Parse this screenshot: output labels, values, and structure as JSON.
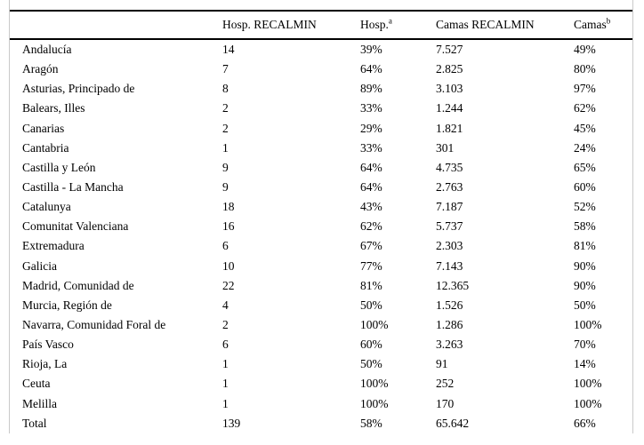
{
  "table": {
    "columns": [
      {
        "label": "",
        "sup": ""
      },
      {
        "label": "Hosp. RECALMIN",
        "sup": ""
      },
      {
        "label": "Hosp.",
        "sup": "a"
      },
      {
        "label": "Camas RECALMIN",
        "sup": ""
      },
      {
        "label": "Camas",
        "sup": "b"
      }
    ],
    "rows": [
      {
        "region": "Andalucía",
        "hosp_recalmin": "14",
        "hosp_pct": "39%",
        "camas_recalmin": "7.527",
        "camas_pct": "49%"
      },
      {
        "region": "Aragón",
        "hosp_recalmin": "7",
        "hosp_pct": "64%",
        "camas_recalmin": "2.825",
        "camas_pct": "80%"
      },
      {
        "region": "Asturias, Principado de",
        "hosp_recalmin": "8",
        "hosp_pct": "89%",
        "camas_recalmin": "3.103",
        "camas_pct": "97%"
      },
      {
        "region": "Balears, Illes",
        "hosp_recalmin": "2",
        "hosp_pct": "33%",
        "camas_recalmin": "1.244",
        "camas_pct": "62%"
      },
      {
        "region": "Canarias",
        "hosp_recalmin": "2",
        "hosp_pct": "29%",
        "camas_recalmin": "1.821",
        "camas_pct": "45%"
      },
      {
        "region": "Cantabria",
        "hosp_recalmin": "1",
        "hosp_pct": "33%",
        "camas_recalmin": "301",
        "camas_pct": "24%"
      },
      {
        "region": "Castilla y León",
        "hosp_recalmin": "9",
        "hosp_pct": "64%",
        "camas_recalmin": "4.735",
        "camas_pct": "65%"
      },
      {
        "region": "Castilla - La Mancha",
        "hosp_recalmin": "9",
        "hosp_pct": "64%",
        "camas_recalmin": "2.763",
        "camas_pct": "60%"
      },
      {
        "region": "Catalunya",
        "hosp_recalmin": "18",
        "hosp_pct": "43%",
        "camas_recalmin": "7.187",
        "camas_pct": "52%"
      },
      {
        "region": "Comunitat Valenciana",
        "hosp_recalmin": "16",
        "hosp_pct": "62%",
        "camas_recalmin": "5.737",
        "camas_pct": "58%"
      },
      {
        "region": "Extremadura",
        "hosp_recalmin": "6",
        "hosp_pct": "67%",
        "camas_recalmin": "2.303",
        "camas_pct": "81%"
      },
      {
        "region": "Galicia",
        "hosp_recalmin": "10",
        "hosp_pct": "77%",
        "camas_recalmin": "7.143",
        "camas_pct": "90%"
      },
      {
        "region": "Madrid, Comunidad de",
        "hosp_recalmin": "22",
        "hosp_pct": "81%",
        "camas_recalmin": "12.365",
        "camas_pct": "90%"
      },
      {
        "region": "Murcia, Región de",
        "hosp_recalmin": "4",
        "hosp_pct": "50%",
        "camas_recalmin": "1.526",
        "camas_pct": "50%"
      },
      {
        "region": "Navarra, Comunidad Foral de",
        "hosp_recalmin": "2",
        "hosp_pct": "100%",
        "camas_recalmin": "1.286",
        "camas_pct": "100%"
      },
      {
        "region": "País Vasco",
        "hosp_recalmin": "6",
        "hosp_pct": "60%",
        "camas_recalmin": "3.263",
        "camas_pct": "70%"
      },
      {
        "region": "Rioja, La",
        "hosp_recalmin": "1",
        "hosp_pct": "50%",
        "camas_recalmin": "91",
        "camas_pct": "14%"
      },
      {
        "region": "Ceuta",
        "hosp_recalmin": "1",
        "hosp_pct": "100%",
        "camas_recalmin": "252",
        "camas_pct": "100%"
      },
      {
        "region": "Melilla",
        "hosp_recalmin": "1",
        "hosp_pct": "100%",
        "camas_recalmin": "170",
        "camas_pct": "100%"
      },
      {
        "region": "Total",
        "hosp_recalmin": "139",
        "hosp_pct": "58%",
        "camas_recalmin": "65.642",
        "camas_pct": "66%"
      }
    ]
  }
}
